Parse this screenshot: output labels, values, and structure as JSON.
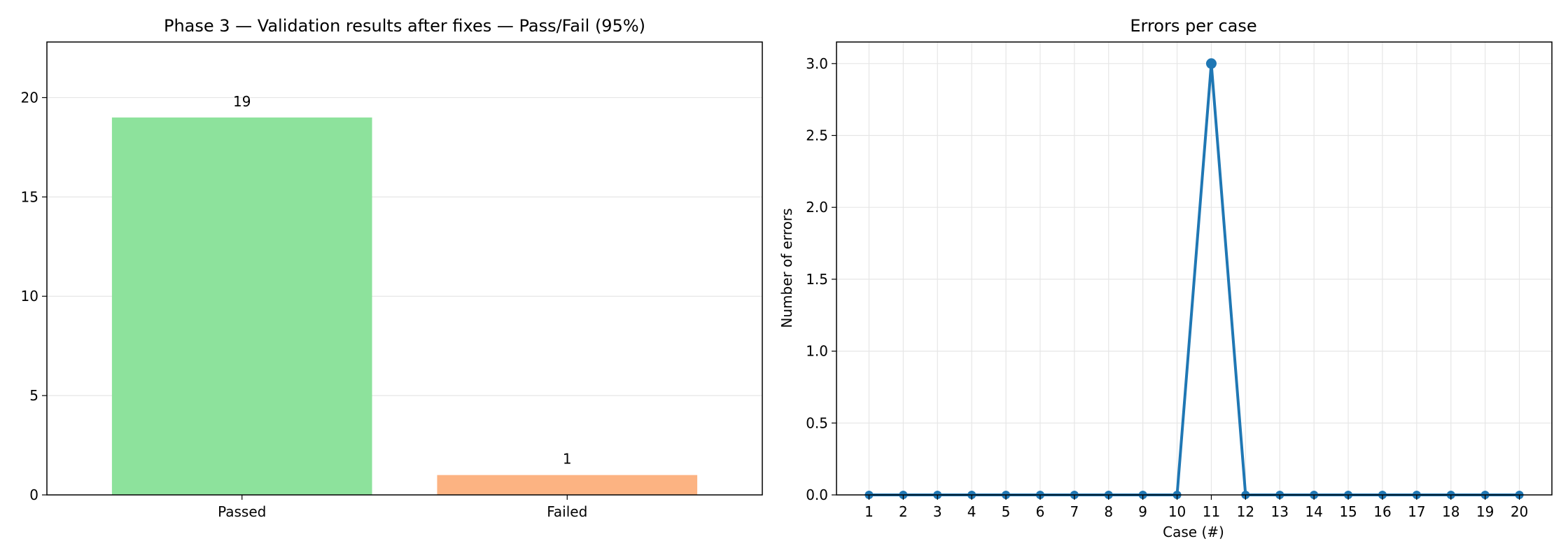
{
  "chart_data": [
    {
      "type": "bar",
      "title": "Phase 3 — Validation results after fixes — Pass/Fail (95%)",
      "xlabel": "",
      "ylabel": "",
      "categories": [
        "Passed",
        "Failed"
      ],
      "values": [
        19,
        1
      ],
      "data_labels": [
        "19",
        "1"
      ],
      "colors": [
        "#8de29c",
        "#fcb382"
      ],
      "ylim": [
        0,
        22.8
      ],
      "yticks": [
        0,
        5,
        10,
        15,
        20
      ],
      "ytick_labels": [
        "0",
        "5",
        "10",
        "15",
        "20"
      ],
      "grid": "y"
    },
    {
      "type": "line",
      "title": "Errors per case",
      "xlabel": "Case (#)",
      "ylabel": "Number of errors",
      "x": [
        1,
        2,
        3,
        4,
        5,
        6,
        7,
        8,
        9,
        10,
        11,
        12,
        13,
        14,
        15,
        16,
        17,
        18,
        19,
        20
      ],
      "xtick_labels": [
        "1",
        "2",
        "3",
        "4",
        "5",
        "6",
        "7",
        "8",
        "9",
        "10",
        "11",
        "12",
        "13",
        "14",
        "15",
        "16",
        "17",
        "18",
        "19",
        "20"
      ],
      "series": [
        {
          "values": [
            0,
            0,
            0,
            0,
            0,
            0,
            0,
            0,
            0,
            0,
            3,
            0,
            0,
            0,
            0,
            0,
            0,
            0,
            0,
            0
          ],
          "color": "#1f77b4",
          "marker": "circle"
        }
      ],
      "xlim": [
        0.05,
        20.95
      ],
      "ylim": [
        0,
        3.15
      ],
      "yticks": [
        0,
        0.5,
        1,
        1.5,
        2,
        2.5,
        3
      ],
      "ytick_labels": [
        "0.0",
        "0.5",
        "1.0",
        "1.5",
        "2.0",
        "2.5",
        "3.0"
      ],
      "grid": "both"
    }
  ]
}
